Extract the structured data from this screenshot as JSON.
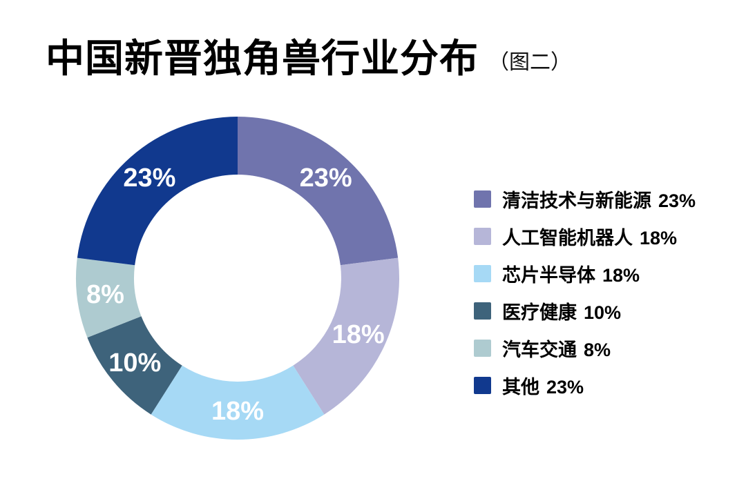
{
  "header": {
    "title": "中国新晋独角兽行业分布",
    "subtitle": "（图二）"
  },
  "chart_data": {
    "type": "pie",
    "variant": "donut",
    "title": "中国新晋独角兽行业分布",
    "subtitle": "（图二）",
    "unit": "%",
    "start_angle_deg": 0,
    "direction": "clockwise",
    "donut_hole_ratio": 0.64,
    "labels_position": "inside",
    "label_color": "#ffffff",
    "legend_position": "right",
    "segments": [
      {
        "label": "清洁技术与新能源",
        "value": 23,
        "pct": "23%",
        "color": "#7074ad"
      },
      {
        "label": "人工智能机器人",
        "value": 18,
        "pct": "18%",
        "color": "#b6b6d8"
      },
      {
        "label": "芯片半导体",
        "value": 18,
        "pct": "18%",
        "color": "#a6d9f5"
      },
      {
        "label": "医疗健康",
        "value": 10,
        "pct": "10%",
        "color": "#3e637b"
      },
      {
        "label": "汽车交通",
        "value": 8,
        "pct": "8%",
        "color": "#aecbd0"
      },
      {
        "label": "其他",
        "value": 23,
        "pct": "23%",
        "color": "#11398e"
      }
    ]
  }
}
